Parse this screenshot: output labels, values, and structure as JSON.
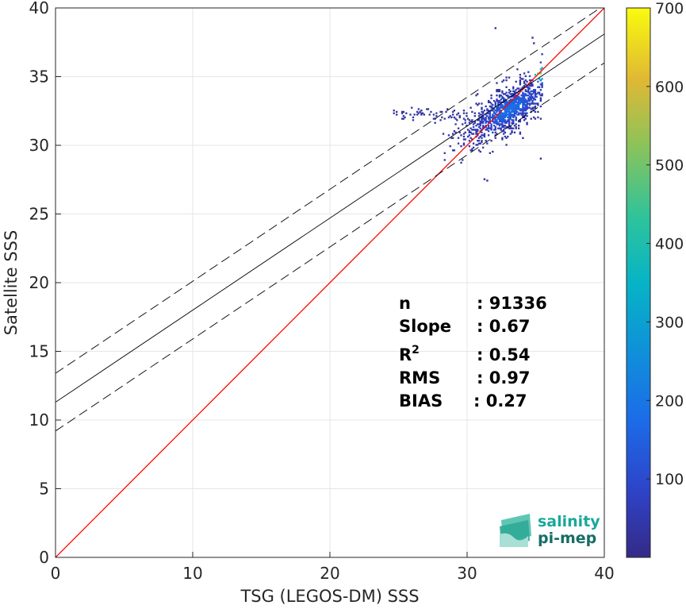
{
  "chart_data": {
    "type": "heatmap",
    "xlabel": "TSG (LEGOS-DM) SSS",
    "ylabel": "Satellite SSS",
    "xlim": [
      0,
      40
    ],
    "ylim": [
      0,
      40
    ],
    "x_ticks": [
      0,
      10,
      20,
      30,
      40
    ],
    "y_ticks": [
      0,
      5,
      10,
      15,
      20,
      25,
      30,
      35,
      40
    ],
    "grid": true,
    "colorbar": {
      "range": [
        0,
        700
      ],
      "ticks": [
        100,
        200,
        300,
        400,
        500,
        600,
        700
      ],
      "colormap": "parula"
    },
    "lines": [
      {
        "kind": "identity",
        "color": "#ff0000",
        "style": "solid",
        "slope": 1.0,
        "intercept": 0.0
      },
      {
        "kind": "fit",
        "color": "#000000",
        "style": "solid",
        "slope": 0.67,
        "intercept": 11.3
      },
      {
        "kind": "fit_plus_sd",
        "color": "#000000",
        "style": "dashed",
        "slope": 0.67,
        "intercept": 13.4
      },
      {
        "kind": "fit_minus_sd",
        "color": "#000000",
        "style": "dashed",
        "slope": 0.67,
        "intercept": 9.2
      }
    ],
    "density_cluster": {
      "x_range": [
        24.5,
        35.5
      ],
      "y_range": [
        27.3,
        37.7
      ],
      "peak": [
        35.2,
        35.2
      ],
      "max_count": 700
    },
    "stats": [
      {
        "label": "n",
        "value": ": 91336"
      },
      {
        "label": "Slope",
        "value": ": 0.67"
      },
      {
        "label": "R",
        "sup": "2",
        "value": ": 0.54"
      },
      {
        "label": "RMS",
        "value": ": 0.97"
      },
      {
        "label": "BIAS",
        "value": ": 0.27"
      }
    ]
  },
  "logo": {
    "line1": "salinity",
    "line2": "pi-mep",
    "color1": "#1aa89a",
    "color2": "#166d66"
  }
}
